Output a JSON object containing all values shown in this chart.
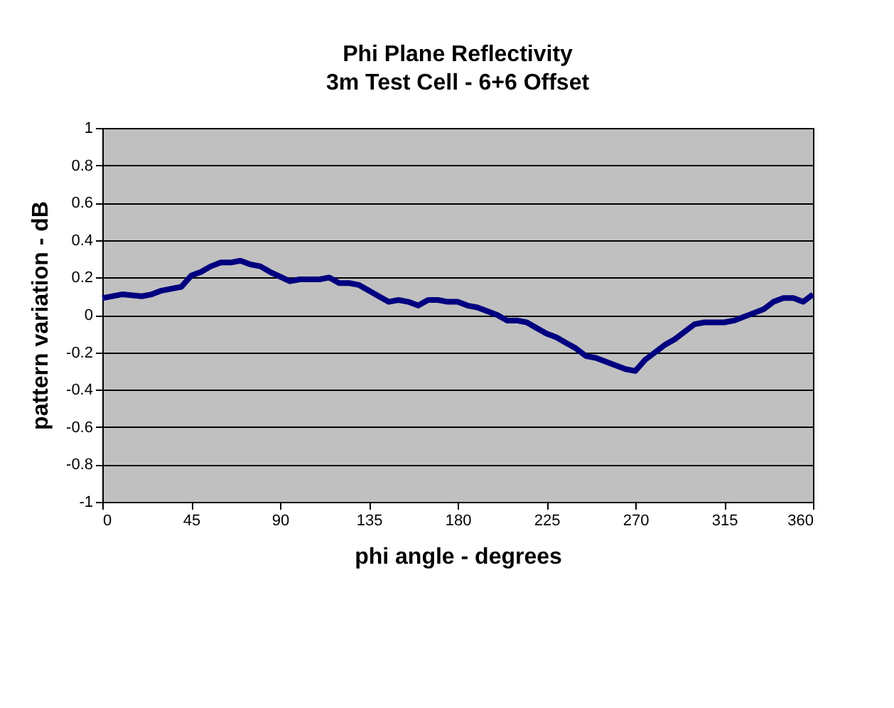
{
  "chart_data": {
    "type": "line",
    "title": "Phi Plane Reflectivity",
    "subtitle": "3m Test Cell - 6+6 Offset",
    "xlabel": "phi angle - degrees",
    "ylabel": "pattern variation - dB",
    "x": [
      0,
      10,
      20,
      25,
      30,
      40,
      45,
      50,
      55,
      60,
      65,
      70,
      75,
      80,
      85,
      95,
      100,
      105,
      110,
      115,
      120,
      125,
      130,
      135,
      140,
      145,
      150,
      155,
      160,
      165,
      170,
      175,
      180,
      185,
      190,
      195,
      200,
      205,
      210,
      215,
      220,
      225,
      230,
      235,
      240,
      245,
      250,
      255,
      260,
      265,
      270,
      275,
      280,
      285,
      290,
      295,
      300,
      305,
      310,
      315,
      320,
      325,
      330,
      335,
      340,
      345,
      350,
      355,
      360
    ],
    "series": [
      {
        "color": "#000080",
        "values": [
          0.09,
          0.11,
          0.1,
          0.11,
          0.13,
          0.15,
          0.21,
          0.23,
          0.26,
          0.28,
          0.28,
          0.29,
          0.27,
          0.26,
          0.23,
          0.18,
          0.19,
          0.19,
          0.19,
          0.2,
          0.17,
          0.17,
          0.16,
          0.13,
          0.1,
          0.07,
          0.08,
          0.07,
          0.05,
          0.08,
          0.08,
          0.07,
          0.07,
          0.05,
          0.04,
          0.02,
          0.0,
          -0.03,
          -0.03,
          -0.04,
          -0.07,
          -0.1,
          -0.12,
          -0.15,
          -0.18,
          -0.22,
          -0.23,
          -0.25,
          -0.27,
          -0.29,
          -0.3,
          -0.24,
          -0.2,
          -0.16,
          -0.13,
          -0.09,
          -0.05,
          -0.04,
          -0.04,
          -0.04,
          -0.03,
          -0.01,
          0.01,
          0.03,
          0.07,
          0.09,
          0.09,
          0.07,
          0.11
        ]
      }
    ],
    "xlim": [
      0,
      360
    ],
    "xticks": [
      0,
      45,
      90,
      135,
      180,
      225,
      270,
      315,
      360
    ],
    "ylim": [
      -1,
      1
    ],
    "yticks": [
      -1,
      -0.8,
      -0.6,
      -0.4,
      -0.2,
      0,
      0.2,
      0.4,
      0.6,
      0.8,
      1
    ],
    "grid": "y",
    "marker": "none",
    "line_style": "solid"
  }
}
